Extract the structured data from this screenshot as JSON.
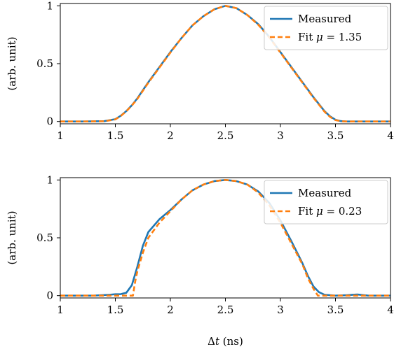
{
  "chart_data": [
    {
      "type": "line",
      "ylabel": "(arb. unit)",
      "xlim": [
        1,
        4
      ],
      "ylim": [
        -0.02,
        1.02
      ],
      "xticks": [
        1,
        1.5,
        2,
        2.5,
        3,
        3.5,
        4
      ],
      "xtick_labels": [
        "1",
        "1.5",
        "2",
        "2.5",
        "3",
        "3.5",
        "4"
      ],
      "yticks": [
        0,
        0.5,
        1
      ],
      "ytick_labels": [
        "0",
        "0.5",
        "1"
      ],
      "legend": {
        "position": "top-right",
        "entries": [
          {
            "label": "Measured",
            "color": "#1f77b4",
            "style": "solid"
          },
          {
            "label": "Fit μ = 1.35",
            "color": "#ff7f0e",
            "style": "dashed"
          }
        ]
      },
      "series": [
        {
          "name": "Measured",
          "color": "#1f77b4",
          "x": [
            1.0,
            1.2,
            1.4,
            1.5,
            1.55,
            1.6,
            1.65,
            1.7,
            1.8,
            1.9,
            2.0,
            2.1,
            2.2,
            2.3,
            2.4,
            2.5,
            2.6,
            2.7,
            2.8,
            2.9,
            3.0,
            3.1,
            3.2,
            3.3,
            3.4,
            3.45,
            3.5,
            3.55,
            3.6,
            3.7,
            3.8,
            4.0
          ],
          "y": [
            0.0,
            0.0,
            0.003,
            0.02,
            0.05,
            0.09,
            0.14,
            0.2,
            0.34,
            0.47,
            0.6,
            0.72,
            0.83,
            0.91,
            0.97,
            1.0,
            0.98,
            0.92,
            0.84,
            0.73,
            0.6,
            0.47,
            0.34,
            0.21,
            0.09,
            0.045,
            0.015,
            0.003,
            0.0,
            0.0,
            0.0,
            0.0
          ]
        },
        {
          "name": "Fit μ = 1.35",
          "color": "#ff7f0e",
          "x": [
            1.0,
            1.2,
            1.4,
            1.5,
            1.55,
            1.6,
            1.65,
            1.7,
            1.8,
            1.9,
            2.0,
            2.1,
            2.2,
            2.3,
            2.4,
            2.5,
            2.6,
            2.7,
            2.8,
            2.9,
            3.0,
            3.1,
            3.2,
            3.3,
            3.4,
            3.45,
            3.5,
            3.55,
            3.6,
            3.7,
            3.8,
            4.0
          ],
          "y": [
            0.0,
            0.0,
            0.002,
            0.018,
            0.048,
            0.088,
            0.138,
            0.195,
            0.335,
            0.465,
            0.595,
            0.72,
            0.83,
            0.91,
            0.97,
            1.0,
            0.98,
            0.92,
            0.835,
            0.725,
            0.595,
            0.465,
            0.335,
            0.205,
            0.085,
            0.04,
            0.012,
            0.002,
            0.0,
            0.0,
            0.0,
            0.0
          ]
        }
      ]
    },
    {
      "type": "line",
      "xlabel": "Δt (ns)",
      "ylabel": "(arb. unit)",
      "xlim": [
        1,
        4
      ],
      "ylim": [
        -0.02,
        1.02
      ],
      "xticks": [
        1,
        1.5,
        2,
        2.5,
        3,
        3.5,
        4
      ],
      "xtick_labels": [
        "1",
        "1.5",
        "2",
        "2.5",
        "3",
        "3.5",
        "4"
      ],
      "yticks": [
        0,
        0.5,
        1
      ],
      "ytick_labels": [
        "0",
        "0.5",
        "1"
      ],
      "legend": {
        "position": "top-right",
        "entries": [
          {
            "label": "Measured",
            "color": "#1f77b4",
            "style": "solid"
          },
          {
            "label": "Fit μ = 0.23",
            "color": "#ff7f0e",
            "style": "dashed"
          }
        ]
      },
      "series": [
        {
          "name": "Measured",
          "color": "#1f77b4",
          "x": [
            1.0,
            1.3,
            1.45,
            1.5,
            1.55,
            1.6,
            1.65,
            1.7,
            1.75,
            1.8,
            1.9,
            2.0,
            2.1,
            2.2,
            2.3,
            2.4,
            2.5,
            2.6,
            2.7,
            2.8,
            2.9,
            3.0,
            3.1,
            3.2,
            3.25,
            3.3,
            3.35,
            3.4,
            3.5,
            3.6,
            3.7,
            3.8,
            4.0
          ],
          "y": [
            0.0,
            0.0,
            0.008,
            0.012,
            0.013,
            0.025,
            0.09,
            0.25,
            0.43,
            0.55,
            0.66,
            0.74,
            0.83,
            0.91,
            0.96,
            0.99,
            1.0,
            0.99,
            0.96,
            0.9,
            0.8,
            0.65,
            0.47,
            0.28,
            0.17,
            0.08,
            0.03,
            0.008,
            0.0,
            0.004,
            0.01,
            0.0,
            0.0
          ]
        },
        {
          "name": "Fit μ = 0.23",
          "color": "#ff7f0e",
          "x": [
            1.0,
            1.3,
            1.5,
            1.6,
            1.66,
            1.68,
            1.7,
            1.75,
            1.8,
            1.9,
            2.0,
            2.1,
            2.2,
            2.3,
            2.4,
            2.5,
            2.6,
            2.7,
            2.8,
            2.9,
            3.0,
            3.1,
            3.2,
            3.25,
            3.3,
            3.33,
            3.34,
            3.4,
            3.5,
            3.6,
            3.8,
            4.0
          ],
          "y": [
            0.0,
            0.0,
            0.0,
            0.0,
            0.0,
            0.12,
            0.21,
            0.37,
            0.5,
            0.63,
            0.73,
            0.83,
            0.91,
            0.96,
            0.99,
            1.0,
            0.99,
            0.96,
            0.89,
            0.78,
            0.63,
            0.45,
            0.27,
            0.15,
            0.06,
            0.015,
            0.0,
            0.0,
            0.0,
            0.0,
            0.0,
            0.0
          ]
        }
      ]
    }
  ]
}
